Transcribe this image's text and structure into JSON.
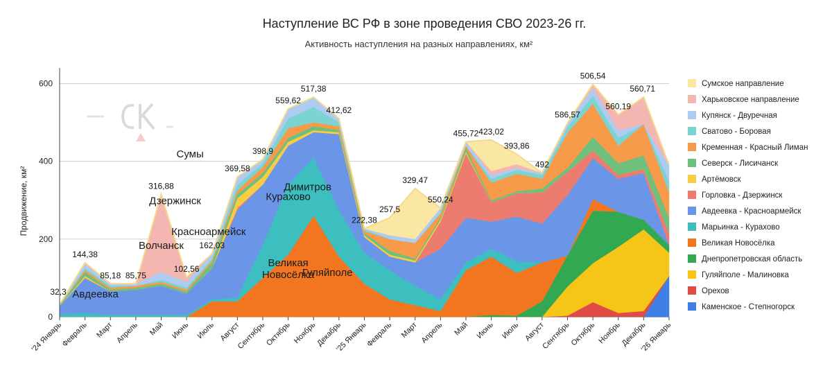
{
  "chart_data": {
    "type": "area",
    "stacked": true,
    "title": "Наступление ВС РФ в зоне проведения СВО 2023-26 гг.",
    "subtitle": "Активность наступления на разных направлениях, км²",
    "ylabel": "Продвижение, км²",
    "xlabel": "",
    "ylim": [
      0,
      640
    ],
    "yticks": [
      "0",
      "200",
      "400",
      "600"
    ],
    "grid": true,
    "legend_position": "right",
    "categories": [
      "'24 Январь",
      "Февраль",
      "Март",
      "Апрель",
      "Май",
      "Июнь",
      "Июль",
      "Август",
      "Сентябрь",
      "Октябрь",
      "Ноябрь",
      "Декабрь",
      "'25 Январь",
      "Февраль",
      "Март",
      "Апрель",
      "Май",
      "Июнь",
      "Июль",
      "Август",
      "Сентябрь",
      "Октябрь",
      "Ноябрь",
      "Декабрь",
      "'26 Январь"
    ],
    "totals_labels": [
      "32,3",
      "144,38",
      "85,18",
      "85,75",
      "316,88",
      "102,56",
      "162,03",
      "369,58",
      "398,9",
      "559,62",
      "517,38",
      "412,62",
      "222,38",
      "257,5",
      "329,47",
      "550,24",
      "455,72",
      "423,02",
      "393,86",
      "492",
      "586,57",
      "506,54",
      "560,19",
      "560,71"
    ],
    "series": [
      {
        "name": "Каменское - Степногорск",
        "color": "#3f7fe6",
        "values": [
          0,
          0,
          0,
          0,
          0,
          0,
          0,
          0,
          0,
          0,
          0,
          0,
          0,
          0,
          0,
          0,
          0,
          0,
          0,
          0,
          0,
          0,
          0,
          0,
          105
        ]
      },
      {
        "name": "Орехов",
        "color": "#e04b45",
        "values": [
          0,
          0,
          0,
          0,
          0,
          0,
          0,
          0,
          0,
          0,
          0,
          0,
          0,
          0,
          0,
          0,
          0,
          0,
          0,
          0,
          3,
          38,
          10,
          15,
          0
        ]
      },
      {
        "name": "Гуляйполе - Малиновка",
        "color": "#f5c518",
        "values": [
          0,
          0,
          0,
          0,
          0,
          0,
          0,
          0,
          0,
          0,
          0,
          0,
          0,
          0,
          0,
          0,
          0,
          0,
          0,
          0,
          75,
          100,
          170,
          210,
          60
        ]
      },
      {
        "name": "Днепропетровская область",
        "color": "#32a852",
        "values": [
          0,
          0,
          0,
          0,
          0,
          0,
          0,
          0,
          0,
          0,
          0,
          0,
          0,
          0,
          0,
          0,
          0,
          5,
          3,
          40,
          80,
          135,
          90,
          25,
          20
        ]
      },
      {
        "name": "Великая Новосёлка",
        "color": "#f27620",
        "values": [
          0,
          0,
          0,
          0,
          0,
          0,
          40,
          40,
          100,
          160,
          260,
          155,
          85,
          45,
          30,
          15,
          120,
          150,
          110,
          100,
          0,
          30,
          0,
          0,
          0
        ]
      },
      {
        "name": "Марьинка - Курахово",
        "color": "#3dbfbf",
        "values": [
          7,
          10,
          5,
          5,
          5,
          5,
          5,
          10,
          85,
          180,
          150,
          120,
          80,
          75,
          50,
          30,
          20,
          20,
          30,
          0,
          0,
          0,
          0,
          0,
          0
        ]
      },
      {
        "name": "Авдеевка - Красноармейск",
        "color": "#6b96e8",
        "values": [
          20,
          90,
          60,
          65,
          75,
          55,
          80,
          225,
          155,
          100,
          65,
          195,
          40,
          35,
          60,
          130,
          115,
          70,
          115,
          100,
          155,
          105,
          85,
          120,
          0
        ]
      },
      {
        "name": "Горловка - Дзержинск",
        "color": "#ec7c70",
        "values": [
          0,
          0,
          0,
          0,
          0,
          0,
          0,
          5,
          0,
          0,
          0,
          0,
          0,
          0,
          0,
          70,
          165,
          50,
          60,
          80,
          60,
          20,
          10,
          10,
          30
        ]
      },
      {
        "name": "Артёмовск",
        "color": "#f7cd46",
        "values": [
          0,
          5,
          0,
          0,
          0,
          0,
          0,
          25,
          20,
          10,
          5,
          5,
          5,
          5,
          5,
          5,
          5,
          0,
          0,
          0,
          0,
          0,
          0,
          0,
          0
        ]
      },
      {
        "name": "Северск - Лисичанск",
        "color": "#6fc07d",
        "values": [
          3,
          10,
          5,
          5,
          5,
          5,
          15,
          10,
          10,
          10,
          10,
          5,
          5,
          10,
          5,
          5,
          10,
          5,
          5,
          10,
          10,
          35,
          30,
          35,
          40
        ]
      },
      {
        "name": "Кременная - Красный Лиман",
        "color": "#f79a4a",
        "values": [
          0,
          5,
          5,
          5,
          5,
          5,
          5,
          10,
          15,
          25,
          10,
          10,
          5,
          30,
          40,
          10,
          5,
          45,
          45,
          25,
          90,
          85,
          45,
          80,
          65
        ]
      },
      {
        "name": "Сватово - Боровая",
        "color": "#7bd4d0",
        "values": [
          0,
          5,
          5,
          0,
          5,
          5,
          5,
          15,
          10,
          25,
          40,
          10,
          5,
          0,
          0,
          5,
          0,
          10,
          10,
          10,
          15,
          20,
          20,
          0,
          30
        ]
      },
      {
        "name": "Купянск - Двуречная",
        "color": "#aecbf2",
        "values": [
          2,
          10,
          5,
          5,
          20,
          15,
          12,
          20,
          10,
          25,
          25,
          10,
          2,
          10,
          10,
          10,
          10,
          10,
          5,
          5,
          10,
          20,
          20,
          0,
          40
        ]
      },
      {
        "name": "Харьковское направление",
        "color": "#f4b6b0",
        "values": [
          0,
          4,
          0,
          0,
          200,
          12,
          0,
          0,
          0,
          0,
          0,
          0,
          0,
          0,
          0,
          0,
          0,
          10,
          10,
          0,
          0,
          10,
          40,
          70,
          0
        ]
      },
      {
        "name": "Сумское направление",
        "color": "#fbe7a4",
        "values": [
          0,
          0,
          0,
          0,
          0,
          0,
          0,
          0,
          0,
          0,
          0,
          0,
          0,
          45,
          130,
          0,
          0,
          80,
          25,
          0,
          0,
          0,
          0,
          0,
          0
        ]
      }
    ],
    "area_labels": [
      {
        "text": "Авдеевка",
        "x": "Февраль",
        "y": 50
      },
      {
        "text": "Волчанск",
        "x": "Май",
        "y": 175
      },
      {
        "text": "Курахово",
        "x": "Октябрь",
        "y": 300
      },
      {
        "text": "Великая",
        "x": "Октябрь",
        "y": 130
      },
      {
        "text": "Новосёлка",
        "x": "Октябрь",
        "y": 100
      },
      {
        "text": "Дзержинск",
        "x": "Май",
        "y": 290
      },
      {
        "text": "Сумы",
        "x": "Июнь",
        "y": 410
      },
      {
        "text": "Красноармейск",
        "x": "Июль",
        "y": 210
      },
      {
        "text": "Димитров",
        "x": "Октябрь",
        "y": 325
      },
      {
        "text": "Гуляйполе",
        "x": "Ноябрь",
        "y": 105
      }
    ]
  },
  "watermark": {
    "text": "СК"
  }
}
